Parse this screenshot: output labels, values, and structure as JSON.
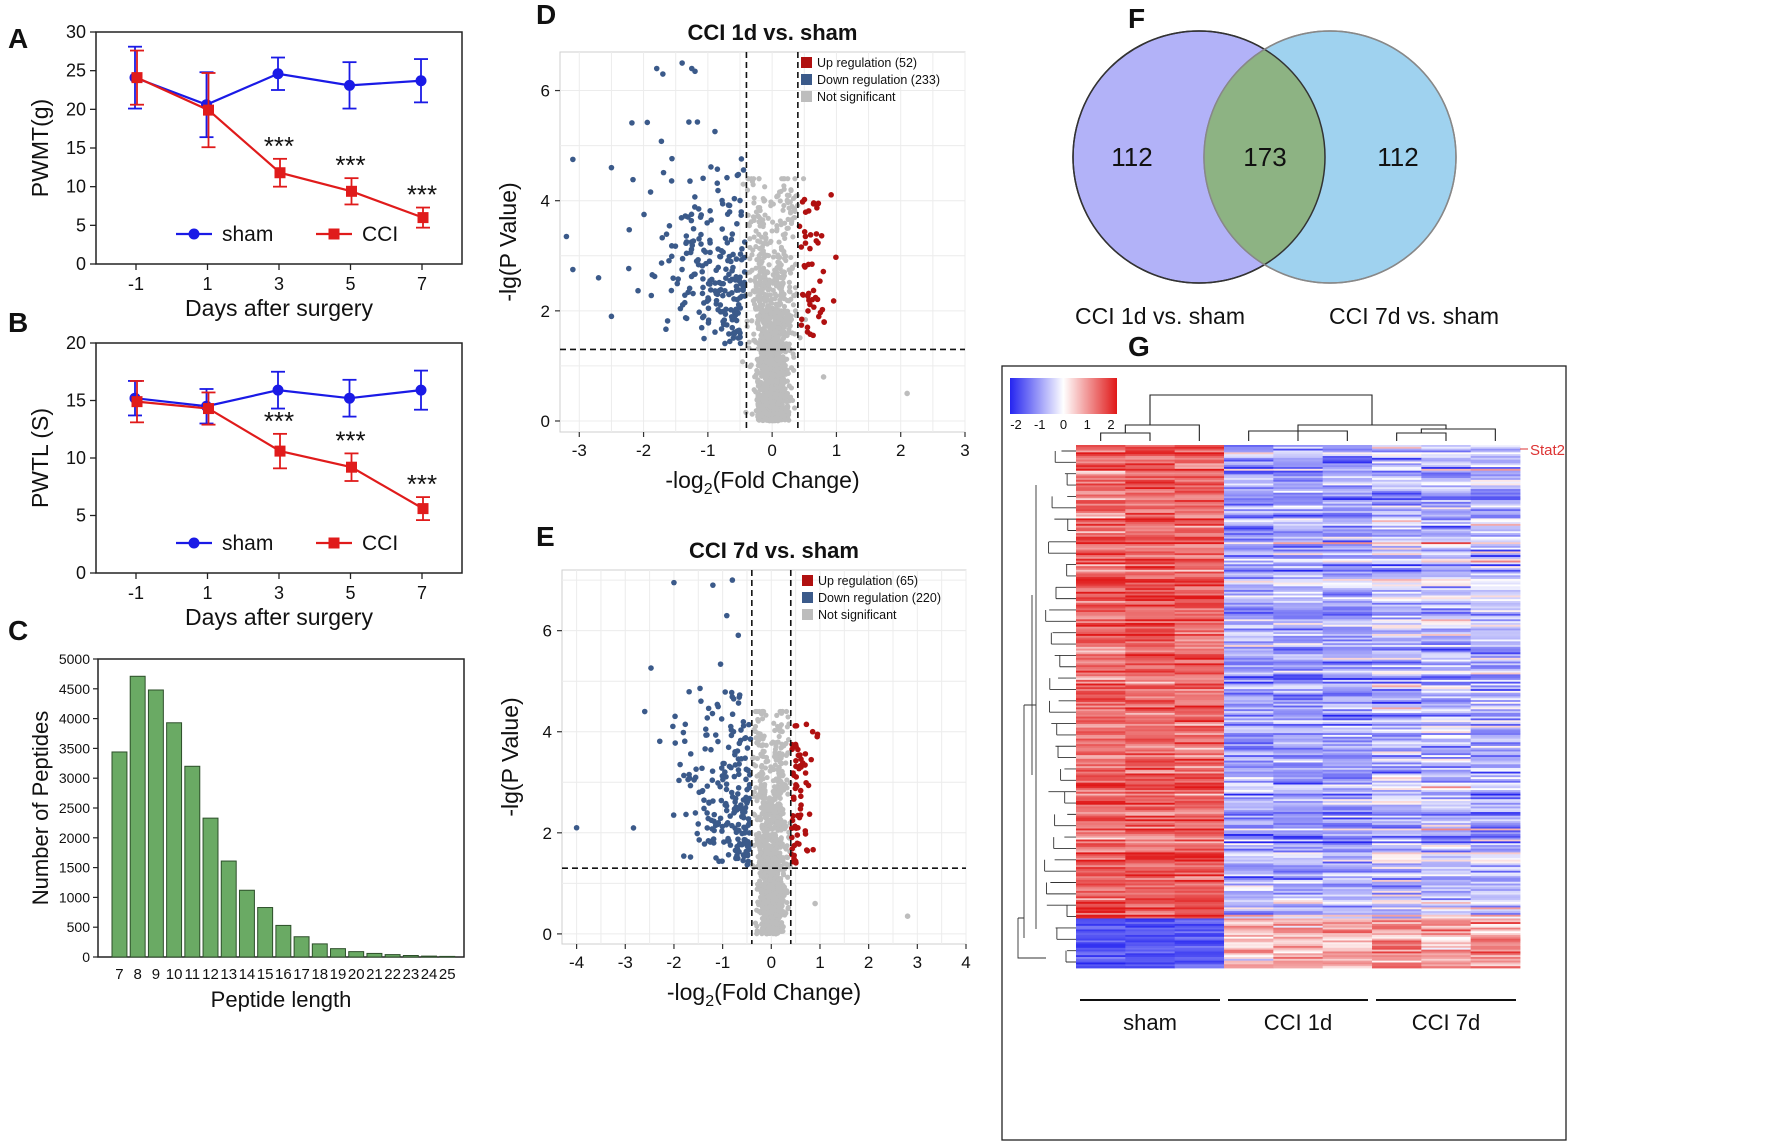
{
  "chart_data": [
    {
      "panel": "A",
      "type": "line",
      "xlabel": "Days after surgery",
      "ylabel": "PWMT(g)",
      "categories": [
        "-1",
        "1",
        "3",
        "5",
        "7"
      ],
      "ylim": [
        0,
        30
      ],
      "yticks": [
        0,
        5,
        10,
        15,
        20,
        25,
        30
      ],
      "series": [
        {
          "name": "sham",
          "color": "#1a1ae6",
          "marker": "circle",
          "values": [
            24.1,
            20.6,
            24.6,
            23.1,
            23.7
          ],
          "errors": [
            4.0,
            4.2,
            2.1,
            3.0,
            2.8
          ]
        },
        {
          "name": "CCI",
          "color": "#e01b1b",
          "marker": "square",
          "values": [
            24.1,
            19.9,
            11.8,
            9.4,
            6.0
          ],
          "errors": [
            3.5,
            4.8,
            1.8,
            1.7,
            1.3
          ]
        }
      ],
      "annotations": [
        {
          "category": "3",
          "text": "***"
        },
        {
          "category": "5",
          "text": "***"
        },
        {
          "category": "7",
          "text": "***"
        }
      ]
    },
    {
      "panel": "B",
      "type": "line",
      "xlabel": "Days after surgery",
      "ylabel": "PWTL (S)",
      "categories": [
        "-1",
        "1",
        "3",
        "5",
        "7"
      ],
      "ylim": [
        0,
        20
      ],
      "yticks": [
        0,
        5,
        10,
        15,
        20
      ],
      "series": [
        {
          "name": "sham",
          "color": "#1a1ae6",
          "marker": "circle",
          "values": [
            15.2,
            14.5,
            15.9,
            15.2,
            15.9
          ],
          "errors": [
            1.5,
            1.5,
            1.6,
            1.6,
            1.7
          ]
        },
        {
          "name": "CCI",
          "color": "#e01b1b",
          "marker": "square",
          "values": [
            14.9,
            14.3,
            10.6,
            9.2,
            5.6
          ],
          "errors": [
            1.8,
            1.4,
            1.5,
            1.2,
            1.0
          ]
        }
      ],
      "annotations": [
        {
          "category": "3",
          "text": "***"
        },
        {
          "category": "5",
          "text": "***"
        },
        {
          "category": "7",
          "text": "***"
        }
      ]
    },
    {
      "panel": "C",
      "type": "bar",
      "xlabel": "Peptide length",
      "ylabel": "Number of Peptides",
      "categories": [
        "7",
        "8",
        "9",
        "10",
        "11",
        "12",
        "13",
        "14",
        "15",
        "16",
        "17",
        "18",
        "19",
        "20",
        "21",
        "22",
        "23",
        "24",
        "25"
      ],
      "values": [
        3440,
        4710,
        4480,
        3930,
        3200,
        2330,
        1610,
        1120,
        830,
        530,
        340,
        220,
        140,
        90,
        60,
        40,
        25,
        15,
        10
      ],
      "ylim": [
        0,
        5000
      ],
      "yticks": [
        0,
        500,
        1000,
        1500,
        2000,
        2500,
        3000,
        3500,
        4000,
        4500,
        5000
      ],
      "color": "#6aaa64"
    },
    {
      "panel": "D",
      "type": "scatter",
      "title": "CCI 1d   vs.   sham",
      "xlabel_main": "-log",
      "xlabel_sub": "2",
      "xlabel_rest": "(Fold Change)",
      "ylabel": "-lg(P Value)",
      "xlim": [
        -3.3,
        3.0
      ],
      "ylim": [
        -0.2,
        6.7
      ],
      "xticks": [
        -3,
        -2,
        -1,
        0,
        1,
        2,
        3
      ],
      "yticks": [
        0,
        2,
        4,
        6
      ],
      "thresholds": {
        "x": [
          -0.4,
          0.4
        ],
        "y": 1.3
      },
      "legend": [
        {
          "label": "Up regulation (52)",
          "color": "#b01010",
          "n": 52
        },
        {
          "label": "Down regulation (233)",
          "color": "#3b5a8a",
          "n": 233
        },
        {
          "label": "Not significant",
          "color": "#bdbdbd",
          "n": 1400
        }
      ],
      "outliers": [
        [
          -3.1,
          4.75
        ],
        [
          -3.2,
          3.35
        ],
        [
          -3.1,
          2.75
        ],
        [
          -2.5,
          4.6
        ],
        [
          -2.7,
          2.6
        ],
        [
          -2.5,
          1.9
        ],
        [
          -1.7,
          6.3
        ],
        [
          -1.4,
          6.5
        ],
        [
          -1.2,
          6.35
        ],
        [
          0.8,
          0.8
        ],
        [
          2.1,
          0.5
        ]
      ]
    },
    {
      "panel": "E",
      "type": "scatter",
      "title": "CCI 7d   vs.   sham",
      "xlabel_main": "-log",
      "xlabel_sub": "2",
      "xlabel_rest": "(Fold Change)",
      "ylabel": "-lg(P Value)",
      "xlim": [
        -4.3,
        4.0
      ],
      "ylim": [
        -0.2,
        7.2
      ],
      "xticks": [
        -4,
        -3,
        -2,
        -1,
        0,
        1,
        2,
        3,
        4
      ],
      "yticks": [
        0,
        2,
        4,
        6
      ],
      "thresholds": {
        "x": [
          -0.4,
          0.4
        ],
        "y": 1.3
      },
      "legend": [
        {
          "label": "Up regulation (65)",
          "color": "#b01010",
          "n": 65
        },
        {
          "label": "Down regulation (220)",
          "color": "#3b5a8a",
          "n": 220
        },
        {
          "label": "Not significant",
          "color": "#bdbdbd",
          "n": 1300
        }
      ],
      "outliers": [
        [
          -4.0,
          2.1
        ],
        [
          -2.6,
          4.4
        ],
        [
          -2.0,
          6.95
        ],
        [
          -1.2,
          6.9
        ],
        [
          -0.8,
          7.0
        ],
        [
          0.9,
          0.6
        ],
        [
          2.8,
          0.35
        ],
        [
          0.85,
          4.0
        ],
        [
          0.95,
          3.95
        ]
      ]
    },
    {
      "panel": "F",
      "type": "venn",
      "sets": [
        {
          "label": "CCI 1d vs. sham",
          "only": "112",
          "color": "#b2b2f8"
        },
        {
          "label": "CCI 7d vs. sham",
          "only": "112",
          "color": "#9fd2ef"
        }
      ],
      "overlap": "173",
      "overlap_color": "#8db383"
    },
    {
      "panel": "G",
      "type": "heatmap",
      "columns": [
        "sham",
        "CCI 1d",
        "CCI 7d"
      ],
      "replicates_per_group": 3,
      "rows": 285,
      "highlight_row_label": "Stat2",
      "colorbar_ticks": [
        "-2",
        "-1",
        "0",
        "1",
        "2"
      ],
      "color_range": [
        -2,
        2
      ],
      "colors": {
        "low": "#2525f0",
        "mid": "#ffffff",
        "high": "#e01818"
      }
    }
  ],
  "panel_letters": [
    "A",
    "B",
    "C",
    "D",
    "E",
    "F",
    "G"
  ]
}
